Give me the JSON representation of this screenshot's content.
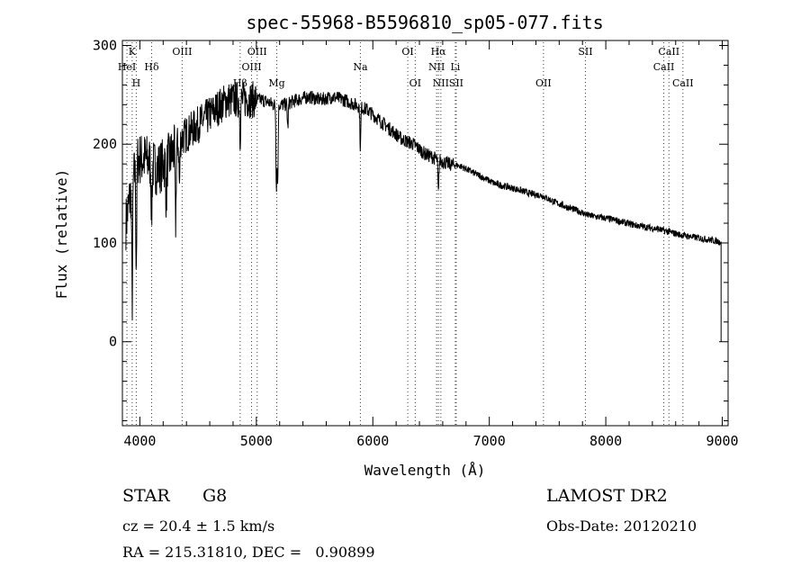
{
  "chart_data": {
    "type": "line",
    "title": "spec-55968-B5596810_sp05-077.fits",
    "xlabel": "Wavelength (Å)",
    "ylabel": "Flux (relative)",
    "xlim": [
      3850,
      9050
    ],
    "ylim": [
      -85,
      305
    ],
    "xticks": [
      4000,
      5000,
      6000,
      7000,
      8000,
      9000
    ],
    "yticks": [
      0,
      100,
      200,
      300
    ],
    "grid": false,
    "line_color": "#000000",
    "marker_color": "#cc0000",
    "continuum": {
      "x": [
        3880,
        3920,
        3980,
        4050,
        4150,
        4250,
        4350,
        4450,
        4550,
        4650,
        4750,
        4850,
        4950,
        5050,
        5150,
        5250,
        5350,
        5450,
        5550,
        5650,
        5750,
        5850,
        5950,
        6050,
        6150,
        6250,
        6350,
        6450,
        6550,
        6650,
        6750,
        6850,
        6950,
        7050,
        7150,
        7250,
        7350,
        7450,
        7550,
        7650,
        7750,
        7850,
        7950,
        8050,
        8150,
        8250,
        8350,
        8450,
        8550,
        8650,
        8750,
        8850,
        8950,
        8990
      ],
      "y": [
        120,
        150,
        185,
        185,
        175,
        185,
        205,
        215,
        225,
        235,
        245,
        245,
        245,
        245,
        240,
        240,
        245,
        248,
        245,
        248,
        245,
        240,
        235,
        225,
        215,
        205,
        200,
        190,
        185,
        180,
        178,
        172,
        166,
        160,
        157,
        154,
        150,
        148,
        142,
        137,
        133,
        128,
        126,
        124,
        121,
        118,
        116,
        114,
        111,
        108,
        106,
        104,
        102,
        101
      ]
    },
    "absorption": [
      {
        "x": 3934,
        "depth": 120
      },
      {
        "x": 3969,
        "depth": 100
      },
      {
        "x": 4101,
        "depth": 50
      },
      {
        "x": 4227,
        "depth": 40
      },
      {
        "x": 4307,
        "depth": 80
      },
      {
        "x": 4340,
        "depth": 45
      },
      {
        "x": 4861,
        "depth": 35
      },
      {
        "x": 5172,
        "depth": 80
      },
      {
        "x": 5183,
        "depth": 80
      },
      {
        "x": 5270,
        "depth": 25
      },
      {
        "x": 5893,
        "depth": 40
      },
      {
        "x": 6563,
        "depth": 35
      }
    ],
    "lines": [
      {
        "label": "K",
        "x": 3934,
        "row": 0
      },
      {
        "label": "HeI",
        "x": 3889,
        "row": 1
      },
      {
        "label": "Hδ",
        "x": 4101,
        "row": 1
      },
      {
        "label": "H",
        "x": 3969,
        "row": 2
      },
      {
        "label": "OIII",
        "x": 4363,
        "row": 0
      },
      {
        "label": "OIII",
        "x": 5007,
        "row": 0
      },
      {
        "label": "OIII",
        "x": 4959,
        "row": 1
      },
      {
        "label": "Hβ",
        "x": 4861,
        "row": 2
      },
      {
        "label": "Mg",
        "x": 5175,
        "row": 2
      },
      {
        "label": "Na",
        "x": 5893,
        "row": 1
      },
      {
        "label": "OI",
        "x": 6300,
        "row": 0
      },
      {
        "label": "OI",
        "x": 6364,
        "row": 2
      },
      {
        "label": "Hα",
        "x": 6563,
        "row": 0
      },
      {
        "label": "NII",
        "x": 6548,
        "row": 1
      },
      {
        "label": "Li",
        "x": 6708,
        "row": 1
      },
      {
        "label": "NII",
        "x": 6584,
        "row": 2
      },
      {
        "label": "SII",
        "x": 6716,
        "row": 2
      },
      {
        "label": "OII",
        "x": 7465,
        "row": 2
      },
      {
        "label": "SII",
        "x": 7825,
        "row": 0
      },
      {
        "label": "CaII",
        "x": 8542,
        "row": 0
      },
      {
        "label": "CaII",
        "x": 8498,
        "row": 1
      },
      {
        "label": "CaII",
        "x": 8662,
        "row": 2
      }
    ]
  },
  "info": {
    "object_class": "STAR",
    "subclass": "G8",
    "survey": "LAMOST DR2",
    "redshift": "cz = 20.4 ± 1.5 km/s",
    "obs_date": "Obs-Date: 20120210",
    "coords": "RA = 215.31810, DEC =   0.90899"
  }
}
